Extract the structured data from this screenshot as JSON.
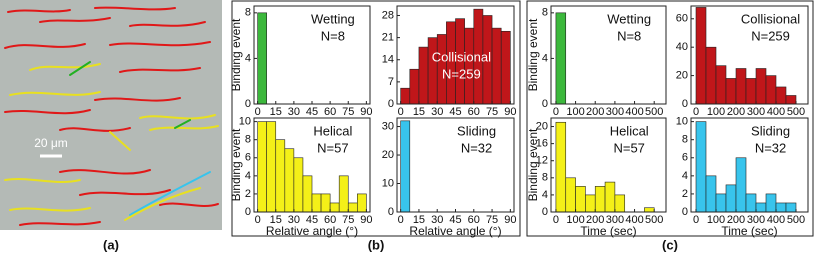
{
  "panel_labels": [
    "(a)",
    "(b)",
    "(c)"
  ],
  "scale_bar": "20 μm",
  "chart_data": [
    {
      "type": "histogram",
      "annotations": [
        "Wetting",
        "N=8"
      ],
      "ylabel": "Binding event",
      "color": "#3cb83c",
      "bins": [
        0,
        7.5,
        15,
        22.5,
        30,
        37.5,
        45,
        52.5,
        60,
        67.5,
        75,
        82.5,
        90
      ],
      "values": [
        8,
        0,
        0,
        0,
        0,
        0,
        0,
        0,
        0,
        0,
        0,
        0
      ],
      "xlim": [
        -3,
        93
      ],
      "ylim": [
        0,
        8.6
      ],
      "xticks": [
        0,
        15,
        30,
        45,
        60,
        75,
        90
      ],
      "yticks": [
        0,
        4,
        8
      ]
    },
    {
      "type": "histogram",
      "annotations": [
        "Collisional",
        "N=259"
      ],
      "annotation_color": "#ffffff",
      "color": "#c0161a",
      "bins": [
        0,
        7.5,
        15,
        22.5,
        30,
        37.5,
        45,
        52.5,
        60,
        67.5,
        75,
        82.5,
        90
      ],
      "values": [
        5,
        11,
        18,
        21,
        22,
        26,
        27,
        24,
        30,
        28,
        24,
        23
      ],
      "xlim": [
        -3,
        93
      ],
      "ylim": [
        0,
        31
      ],
      "xticks": [
        0,
        15,
        30,
        45,
        60,
        75,
        90
      ],
      "yticks": [
        0,
        7,
        14,
        21,
        28
      ]
    },
    {
      "type": "histogram",
      "annotations": [
        "Helical",
        "N=57"
      ],
      "ylabel": "Binding event",
      "xlabel": "Relative angle (°)",
      "color": "#f4f018",
      "bins": [
        0,
        7.5,
        15,
        22.5,
        30,
        37.5,
        45,
        52.5,
        60,
        67.5,
        75,
        82.5,
        90
      ],
      "values": [
        10,
        10,
        8,
        7,
        6,
        4,
        2,
        2,
        1,
        4,
        1,
        2
      ],
      "xlim": [
        -3,
        93
      ],
      "ylim": [
        0,
        10.4
      ],
      "xticks": [
        0,
        15,
        30,
        45,
        60,
        75,
        90
      ],
      "yticks": [
        0,
        2,
        4,
        6,
        8,
        10
      ]
    },
    {
      "type": "histogram",
      "annotations": [
        "Sliding",
        "N=32"
      ],
      "xlabel": "Relative angle (°)",
      "color": "#38c4ec",
      "bins": [
        0,
        7.5,
        15,
        22.5,
        30,
        37.5,
        45,
        52.5,
        60,
        67.5,
        75,
        82.5,
        90
      ],
      "values": [
        32,
        0,
        0,
        0,
        0,
        0,
        0,
        0,
        0,
        0,
        0,
        0
      ],
      "xlim": [
        -3,
        93
      ],
      "ylim": [
        0,
        33
      ],
      "xticks": [
        0,
        15,
        30,
        45,
        60,
        75,
        90
      ],
      "yticks": [
        0,
        10,
        20,
        30
      ]
    },
    {
      "type": "histogram",
      "annotations": [
        "Wetting",
        "N=8"
      ],
      "ylabel": "Binding event",
      "color": "#3cb83c",
      "bins": [
        0,
        50,
        100,
        150,
        200,
        250,
        300,
        350,
        400,
        450,
        500
      ],
      "values": [
        8,
        0,
        0,
        0,
        0,
        0,
        0,
        0,
        0,
        0
      ],
      "xlim": [
        -25,
        560
      ],
      "ylim": [
        0,
        8.6
      ],
      "xticks": [
        0,
        100,
        200,
        300,
        400,
        500
      ],
      "yticks": [
        0,
        4,
        8
      ]
    },
    {
      "type": "histogram",
      "annotations": [
        "Collisional",
        "N=259"
      ],
      "color": "#c0161a",
      "bins": [
        0,
        50,
        100,
        150,
        200,
        250,
        300,
        350,
        400,
        450,
        500
      ],
      "values": [
        68,
        40,
        27,
        18,
        25,
        18,
        25,
        20,
        12,
        6
      ],
      "xlim": [
        -25,
        560
      ],
      "ylim": [
        0,
        69
      ],
      "xticks": [
        0,
        100,
        200,
        300,
        400,
        500
      ],
      "yticks": [
        0,
        20,
        40,
        60
      ]
    },
    {
      "type": "histogram",
      "annotations": [
        "Helical",
        "N=57"
      ],
      "ylabel": "Binding event",
      "xlabel": "Time (sec)",
      "color": "#f4f018",
      "bins": [
        0,
        50,
        100,
        150,
        200,
        250,
        300,
        350,
        400,
        450,
        500
      ],
      "values": [
        21,
        8,
        6,
        4,
        6,
        7,
        4,
        0,
        0,
        1
      ],
      "xlim": [
        -25,
        560
      ],
      "ylim": [
        0,
        22
      ],
      "xticks": [
        0,
        100,
        200,
        300,
        400,
        500
      ],
      "yticks": [
        0,
        4,
        8,
        12,
        16,
        20
      ]
    },
    {
      "type": "histogram",
      "annotations": [
        "Sliding",
        "N=32"
      ],
      "xlabel": "Time (sec)",
      "color": "#38c4ec",
      "bins": [
        0,
        50,
        100,
        150,
        200,
        250,
        300,
        350,
        400,
        450,
        500
      ],
      "values": [
        10,
        4,
        2,
        3,
        6,
        2,
        1,
        2,
        1,
        1
      ],
      "xlim": [
        -25,
        560
      ],
      "ylim": [
        0,
        10.4
      ],
      "xticks": [
        0,
        100,
        200,
        300,
        400,
        500
      ],
      "yticks": [
        0,
        2,
        4,
        6,
        8,
        10
      ]
    }
  ]
}
